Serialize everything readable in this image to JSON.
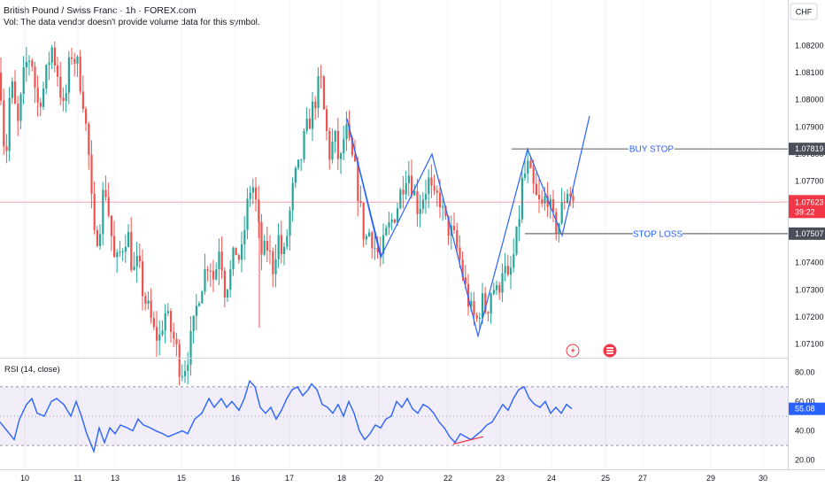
{
  "header": {
    "title": "British Pound / Swiss Franc · 1h · FOREX.com",
    "volume_note": "Vol: The data vendor doesn't provide volume data for this symbol."
  },
  "currency": "CHF",
  "colors": {
    "bull": "#26a69a",
    "bear": "#ef5350",
    "pattern": "#2962ff",
    "level": "#6b6f7a",
    "current": "#f23645",
    "rsi": "#2962ff",
    "rsi_band": "#7e57c2"
  },
  "chart_data": [
    {
      "type": "candlestick",
      "title": "British Pound / Swiss Franc · 1h · FOREX.com",
      "ylim": [
        1.0705,
        1.0825
      ],
      "y_ticks": [
        "1.08200",
        "1.08100",
        "1.08000",
        "1.07900",
        "1.07800",
        "1.07700",
        "1.07600",
        "1.07500",
        "1.07400",
        "1.07300",
        "1.07200",
        "1.07100"
      ],
      "x_ticks": [
        "10",
        "11",
        "13",
        "15",
        "16",
        "17",
        "18",
        "20",
        "22",
        "23",
        "24",
        "25",
        "27",
        "29",
        "30"
      ],
      "price_path": [
        [
          0,
          1.081
        ],
        [
          6,
          1.0775
        ],
        [
          12,
          1.0808
        ],
        [
          20,
          1.079
        ],
        [
          28,
          1.0812
        ],
        [
          35,
          1.0817
        ],
        [
          42,
          1.0798
        ],
        [
          50,
          1.0805
        ],
        [
          58,
          1.082
        ],
        [
          65,
          1.081
        ],
        [
          72,
          1.0795
        ],
        [
          80,
          1.0818
        ],
        [
          88,
          1.0812
        ],
        [
          94,
          1.08
        ],
        [
          100,
          1.078
        ],
        [
          106,
          1.0748
        ],
        [
          112,
          1.0752
        ],
        [
          118,
          1.077
        ],
        [
          124,
          1.0755
        ],
        [
          130,
          1.0738
        ],
        [
          137,
          1.0745
        ],
        [
          144,
          1.0752
        ],
        [
          150,
          1.0736
        ],
        [
          156,
          1.074
        ],
        [
          162,
          1.0728
        ],
        [
          168,
          1.0722
        ],
        [
          174,
          1.0714
        ],
        [
          180,
          1.0712
        ],
        [
          186,
          1.0722
        ],
        [
          192,
          1.0716
        ],
        [
          198,
          1.071
        ],
        [
          204,
          1.07
        ],
        [
          210,
          1.0703
        ],
        [
          218,
          1.0715
        ],
        [
          224,
          1.0728
        ],
        [
          230,
          1.0735
        ],
        [
          236,
          1.0742
        ],
        [
          242,
          1.0733
        ],
        [
          248,
          1.0748
        ],
        [
          254,
          1.073
        ],
        [
          260,
          1.0736
        ],
        [
          266,
          1.0745
        ],
        [
          272,
          1.074
        ],
        [
          278,
          1.0758
        ],
        [
          284,
          1.077
        ],
        [
          288,
          1.0765
        ],
        [
          292,
          1.0752
        ],
        [
          296,
          1.0742
        ],
        [
          302,
          1.0746
        ],
        [
          308,
          1.0738
        ],
        [
          314,
          1.075
        ],
        [
          320,
          1.074
        ],
        [
          326,
          1.0755
        ],
        [
          332,
          1.077
        ],
        [
          338,
          1.0775
        ],
        [
          344,
          1.0786
        ],
        [
          350,
          1.0793
        ],
        [
          356,
          1.08
        ],
        [
          362,
          1.0808
        ],
        [
          366,
          1.0795
        ],
        [
          372,
          1.078
        ],
        [
          378,
          1.0786
        ],
        [
          384,
          1.0775
        ],
        [
          390,
          1.079
        ],
        [
          396,
          1.078
        ],
        [
          402,
          1.0772
        ],
        [
          406,
          1.0762
        ],
        [
          412,
          1.0748
        ],
        [
          418,
          1.0752
        ],
        [
          424,
          1.0745
        ],
        [
          430,
          1.0742
        ],
        [
          436,
          1.075
        ],
        [
          442,
          1.0755
        ],
        [
          448,
          1.076
        ],
        [
          454,
          1.0768
        ],
        [
          460,
          1.0775
        ],
        [
          466,
          1.0768
        ],
        [
          472,
          1.076
        ],
        [
          478,
          1.0765
        ],
        [
          484,
          1.077
        ],
        [
          490,
          1.0762
        ],
        [
          496,
          1.0765
        ],
        [
          502,
          1.0755
        ],
        [
          508,
          1.0752
        ],
        [
          514,
          1.0748
        ],
        [
          520,
          1.074
        ],
        [
          526,
          1.073
        ],
        [
          532,
          1.0722
        ],
        [
          538,
          1.0718
        ],
        [
          544,
          1.0726
        ],
        [
          550,
          1.0722
        ],
        [
          556,
          1.0732
        ],
        [
          562,
          1.0728
        ],
        [
          568,
          1.074
        ],
        [
          574,
          1.0732
        ],
        [
          580,
          1.0742
        ],
        [
          585,
          1.0752
        ],
        [
          590,
          1.077
        ],
        [
          596,
          1.0775
        ],
        [
          600,
          1.077
        ],
        [
          606,
          1.0763
        ],
        [
          612,
          1.076
        ],
        [
          618,
          1.0766
        ],
        [
          624,
          1.0755
        ],
        [
          630,
          1.0753
        ],
        [
          636,
          1.0762
        ],
        [
          642,
          1.0768
        ],
        [
          648,
          1.0762
        ]
      ],
      "pattern_lines": [
        [
          [
            392,
            1.0793
          ],
          [
            430,
            1.0742
          ],
          [
            488,
            1.078
          ],
          [
            540,
            1.0713
          ],
          [
            596,
            1.07819
          ],
          [
            635,
            1.075
          ],
          [
            666,
            1.0794
          ]
        ],
        [
          [
            392,
            1.0793
          ],
          [
            431,
            1.0742
          ]
        ]
      ],
      "levels": [
        {
          "label": "BUY STOP",
          "price": 1.07819,
          "price_label": "1.07819",
          "x_start": 578
        },
        {
          "label": "STOP LOSS",
          "price": 1.07507,
          "price_label": "1.07507",
          "x_start": 593
        }
      ],
      "current_price": {
        "price": 1.07623,
        "price_label": "1.07623",
        "countdown": "39:22"
      }
    },
    {
      "type": "line",
      "title": "RSI (14, close)",
      "ylim": [
        15,
        85
      ],
      "y_ticks": [
        "80.00",
        "60.00",
        "40.00",
        "20.00"
      ],
      "band": [
        30,
        70
      ],
      "last_value": "55.08",
      "rsi_path": [
        [
          0,
          46
        ],
        [
          8,
          40
        ],
        [
          16,
          34
        ],
        [
          22,
          48
        ],
        [
          30,
          58
        ],
        [
          36,
          62
        ],
        [
          42,
          52
        ],
        [
          50,
          50
        ],
        [
          58,
          60
        ],
        [
          64,
          62
        ],
        [
          72,
          58
        ],
        [
          80,
          50
        ],
        [
          86,
          60
        ],
        [
          92,
          50
        ],
        [
          98,
          38
        ],
        [
          106,
          26
        ],
        [
          112,
          42
        ],
        [
          118,
          32
        ],
        [
          124,
          42
        ],
        [
          130,
          38
        ],
        [
          136,
          44
        ],
        [
          144,
          42
        ],
        [
          150,
          40
        ],
        [
          156,
          48
        ],
        [
          162,
          44
        ],
        [
          170,
          42
        ],
        [
          176,
          40
        ],
        [
          184,
          38
        ],
        [
          190,
          36
        ],
        [
          198,
          38
        ],
        [
          206,
          40
        ],
        [
          212,
          38
        ],
        [
          220,
          48
        ],
        [
          228,
          52
        ],
        [
          236,
          62
        ],
        [
          242,
          56
        ],
        [
          250,
          62
        ],
        [
          256,
          56
        ],
        [
          262,
          60
        ],
        [
          270,
          54
        ],
        [
          276,
          62
        ],
        [
          282,
          74
        ],
        [
          288,
          70
        ],
        [
          294,
          56
        ],
        [
          300,
          52
        ],
        [
          306,
          56
        ],
        [
          312,
          48
        ],
        [
          318,
          54
        ],
        [
          324,
          62
        ],
        [
          330,
          68
        ],
        [
          336,
          70
        ],
        [
          342,
          64
        ],
        [
          348,
          68
        ],
        [
          352,
          72
        ],
        [
          358,
          68
        ],
        [
          364,
          58
        ],
        [
          370,
          56
        ],
        [
          376,
          52
        ],
        [
          382,
          58
        ],
        [
          388,
          50
        ],
        [
          394,
          60
        ],
        [
          400,
          52
        ],
        [
          406,
          40
        ],
        [
          412,
          34
        ],
        [
          418,
          38
        ],
        [
          424,
          44
        ],
        [
          430,
          42
        ],
        [
          436,
          48
        ],
        [
          442,
          50
        ],
        [
          448,
          60
        ],
        [
          454,
          56
        ],
        [
          460,
          62
        ],
        [
          466,
          55
        ],
        [
          472,
          52
        ],
        [
          478,
          58
        ],
        [
          484,
          56
        ],
        [
          490,
          52
        ],
        [
          496,
          46
        ],
        [
          502,
          42
        ],
        [
          508,
          36
        ],
        [
          514,
          32
        ],
        [
          520,
          38
        ],
        [
          526,
          36
        ],
        [
          532,
          34
        ],
        [
          538,
          37
        ],
        [
          544,
          40
        ],
        [
          550,
          44
        ],
        [
          556,
          46
        ],
        [
          562,
          52
        ],
        [
          568,
          58
        ],
        [
          574,
          54
        ],
        [
          580,
          62
        ],
        [
          586,
          68
        ],
        [
          592,
          70
        ],
        [
          598,
          62
        ],
        [
          604,
          58
        ],
        [
          610,
          56
        ],
        [
          616,
          60
        ],
        [
          622,
          52
        ],
        [
          628,
          56
        ],
        [
          634,
          52
        ],
        [
          640,
          58
        ],
        [
          646,
          55
        ]
      ],
      "divergence": [
        [
          512,
          31
        ],
        [
          546,
          36
        ]
      ]
    }
  ]
}
